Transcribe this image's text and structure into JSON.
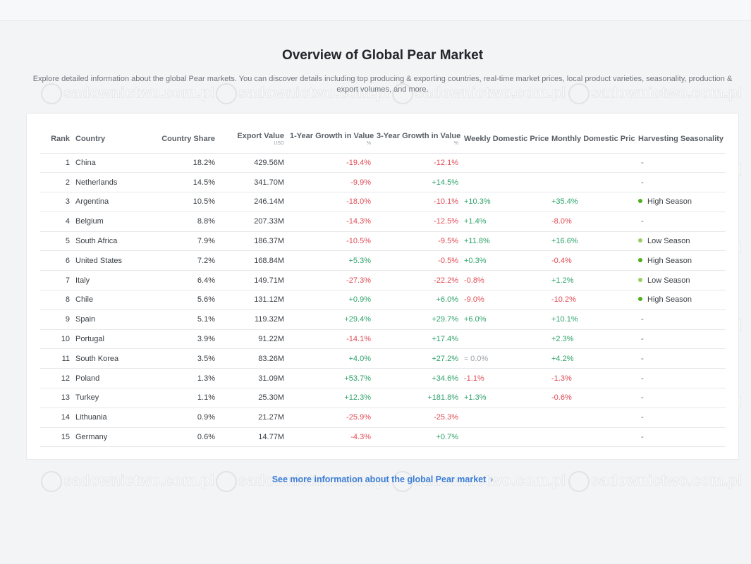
{
  "page": {
    "title": "Overview of Global Pear Market",
    "subtitle": "Explore detailed information about the global Pear markets. You can discover details including top producing & exporting countries, real-time market prices, local product varieties, seasonality, production & export volumes, and more.",
    "more_link": "See more information about the global Pear market",
    "more_icon": "chevron-right-icon",
    "watermark": "sadownictwo.com.pl"
  },
  "colors": {
    "negative": "#e04b55",
    "positive": "#2fa36b",
    "link": "#3b7ed6",
    "high_season": "#4caf1a",
    "low_season": "#9ccc65"
  },
  "table": {
    "headers": {
      "rank": "Rank",
      "country": "Country",
      "share": "Country Share",
      "export": "Export Value",
      "export_unit": "USD",
      "growth1": "1-Year Growth in Value",
      "growth1_unit": "%",
      "growth3": "3-Year Growth in Value",
      "growth3_unit": "%",
      "weekly": "Weekly Domestic Price",
      "monthly": "Monthly Domestic Price",
      "season": "Harvesting Seasonality"
    },
    "rows": [
      {
        "rank": "1",
        "country": "China",
        "share": "18.2%",
        "export": "429.56M",
        "g1": "-19.4%",
        "g3": "-12.1%",
        "weekly": "",
        "monthly": "",
        "season": "-",
        "season_type": ""
      },
      {
        "rank": "2",
        "country": "Netherlands",
        "share": "14.5%",
        "export": "341.70M",
        "g1": "-9.9%",
        "g3": "+14.5%",
        "weekly": "",
        "monthly": "",
        "season": "-",
        "season_type": ""
      },
      {
        "rank": "3",
        "country": "Argentina",
        "share": "10.5%",
        "export": "246.14M",
        "g1": "-18.0%",
        "g3": "-10.1%",
        "weekly": "+10.3%",
        "monthly": "+35.4%",
        "season": "High Season",
        "season_type": "high"
      },
      {
        "rank": "4",
        "country": "Belgium",
        "share": "8.8%",
        "export": "207.33M",
        "g1": "-14.3%",
        "g3": "-12.5%",
        "weekly": "+1.4%",
        "monthly": "-8.0%",
        "season": "-",
        "season_type": ""
      },
      {
        "rank": "5",
        "country": "South Africa",
        "share": "7.9%",
        "export": "186.37M",
        "g1": "-10.5%",
        "g3": "-9.5%",
        "weekly": "+11.8%",
        "monthly": "+16.6%",
        "season": "Low Season",
        "season_type": "low"
      },
      {
        "rank": "6",
        "country": "United States",
        "share": "7.2%",
        "export": "168.84M",
        "g1": "+5.3%",
        "g3": "-0.5%",
        "weekly": "+0.3%",
        "monthly": "-0.4%",
        "season": "High Season",
        "season_type": "high"
      },
      {
        "rank": "7",
        "country": "Italy",
        "share": "6.4%",
        "export": "149.71M",
        "g1": "-27.3%",
        "g3": "-22.2%",
        "weekly": "-0.8%",
        "monthly": "+1.2%",
        "season": "Low Season",
        "season_type": "low"
      },
      {
        "rank": "8",
        "country": "Chile",
        "share": "5.6%",
        "export": "131.12M",
        "g1": "+0.9%",
        "g3": "+6.0%",
        "weekly": "-9.0%",
        "monthly": "-10.2%",
        "season": "High Season",
        "season_type": "high"
      },
      {
        "rank": "9",
        "country": "Spain",
        "share": "5.1%",
        "export": "119.32M",
        "g1": "+29.4%",
        "g3": "+29.7%",
        "weekly": "+6.0%",
        "monthly": "+10.1%",
        "season": "-",
        "season_type": ""
      },
      {
        "rank": "10",
        "country": "Portugal",
        "share": "3.9%",
        "export": "91.22M",
        "g1": "-14.1%",
        "g3": "+17.4%",
        "weekly": "",
        "monthly": "+2.3%",
        "season": "-",
        "season_type": ""
      },
      {
        "rank": "11",
        "country": "South Korea",
        "share": "3.5%",
        "export": "83.26M",
        "g1": "+4.0%",
        "g3": "+27.2%",
        "weekly": "≈ 0.0%",
        "monthly": "+4.2%",
        "season": "-",
        "season_type": ""
      },
      {
        "rank": "12",
        "country": "Poland",
        "share": "1.3%",
        "export": "31.09M",
        "g1": "+53.7%",
        "g3": "+34.6%",
        "weekly": "-1.1%",
        "monthly": "-1.3%",
        "season": "-",
        "season_type": ""
      },
      {
        "rank": "13",
        "country": "Turkey",
        "share": "1.1%",
        "export": "25.30M",
        "g1": "+12.3%",
        "g3": "+181.8%",
        "weekly": "+1.3%",
        "monthly": "-0.6%",
        "season": "-",
        "season_type": ""
      },
      {
        "rank": "14",
        "country": "Lithuania",
        "share": "0.9%",
        "export": "21.27M",
        "g1": "-25.9%",
        "g3": "-25.3%",
        "weekly": "",
        "monthly": "",
        "season": "-",
        "season_type": ""
      },
      {
        "rank": "15",
        "country": "Germany",
        "share": "0.6%",
        "export": "14.77M",
        "g1": "-4.3%",
        "g3": "+0.7%",
        "weekly": "",
        "monthly": "",
        "season": "-",
        "season_type": ""
      }
    ]
  }
}
